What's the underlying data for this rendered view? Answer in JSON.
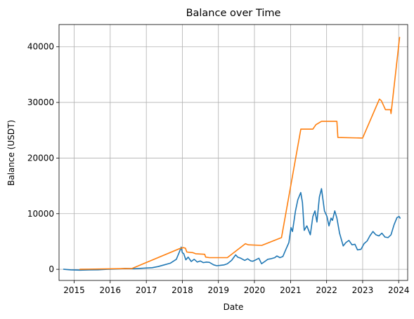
{
  "chart_data": {
    "type": "line",
    "title": "Balance over Time",
    "xlabel": "Date",
    "ylabel": "Balance (USDT)",
    "x_type": "date",
    "xlim": [
      "2014-08-01",
      "2024-04-01"
    ],
    "ylim": [
      -2000,
      44000
    ],
    "x_ticks": [
      {
        "date": "2015-01-01",
        "label": "2015"
      },
      {
        "date": "2016-01-01",
        "label": "2016"
      },
      {
        "date": "2017-01-01",
        "label": "2017"
      },
      {
        "date": "2018-01-01",
        "label": "2018"
      },
      {
        "date": "2019-01-01",
        "label": "2019"
      },
      {
        "date": "2020-01-01",
        "label": "2020"
      },
      {
        "date": "2021-01-01",
        "label": "2021"
      },
      {
        "date": "2022-01-01",
        "label": "2022"
      },
      {
        "date": "2023-01-01",
        "label": "2023"
      },
      {
        "date": "2024-01-01",
        "label": "2024"
      }
    ],
    "y_ticks": [
      {
        "value": 0,
        "label": "0"
      },
      {
        "value": 10000,
        "label": "10000"
      },
      {
        "value": 20000,
        "label": "20000"
      },
      {
        "value": 30000,
        "label": "30000"
      },
      {
        "value": 40000,
        "label": "40000"
      }
    ],
    "grid": true,
    "legend": "none",
    "series": [
      {
        "color": "#1f77b4",
        "points": [
          [
            "2014-09-17",
            0
          ],
          [
            "2014-12-01",
            -100
          ],
          [
            "2015-03-01",
            -150
          ],
          [
            "2015-06-01",
            -100
          ],
          [
            "2015-09-01",
            -80
          ],
          [
            "2015-12-01",
            0
          ],
          [
            "2016-03-01",
            50
          ],
          [
            "2016-06-01",
            150
          ],
          [
            "2016-09-01",
            100
          ],
          [
            "2016-12-01",
            200
          ],
          [
            "2017-03-01",
            300
          ],
          [
            "2017-05-01",
            500
          ],
          [
            "2017-07-01",
            800
          ],
          [
            "2017-09-01",
            1100
          ],
          [
            "2017-11-01",
            1800
          ],
          [
            "2017-12-10",
            3500
          ],
          [
            "2017-12-20",
            4000
          ],
          [
            "2018-01-01",
            3000
          ],
          [
            "2018-01-15",
            2800
          ],
          [
            "2018-02-05",
            1700
          ],
          [
            "2018-03-01",
            2200
          ],
          [
            "2018-04-01",
            1400
          ],
          [
            "2018-05-01",
            1800
          ],
          [
            "2018-06-01",
            1300
          ],
          [
            "2018-07-01",
            1500
          ],
          [
            "2018-08-01",
            1200
          ],
          [
            "2018-09-01",
            1300
          ],
          [
            "2018-10-01",
            1250
          ],
          [
            "2018-11-15",
            800
          ],
          [
            "2018-12-15",
            650
          ],
          [
            "2019-01-15",
            700
          ],
          [
            "2019-03-01",
            800
          ],
          [
            "2019-04-01",
            1000
          ],
          [
            "2019-05-15",
            1600
          ],
          [
            "2019-06-25",
            2600
          ],
          [
            "2019-07-15",
            2200
          ],
          [
            "2019-08-15",
            2000
          ],
          [
            "2019-09-25",
            1600
          ],
          [
            "2019-10-25",
            1900
          ],
          [
            "2019-11-25",
            1500
          ],
          [
            "2019-12-15",
            1450
          ],
          [
            "2020-01-15",
            1700
          ],
          [
            "2020-02-15",
            2000
          ],
          [
            "2020-03-13",
            1000
          ],
          [
            "2020-04-15",
            1400
          ],
          [
            "2020-05-15",
            1800
          ],
          [
            "2020-06-15",
            1900
          ],
          [
            "2020-07-25",
            2100
          ],
          [
            "2020-08-15",
            2400
          ],
          [
            "2020-09-15",
            2100
          ],
          [
            "2020-10-15",
            2300
          ],
          [
            "2020-11-15",
            3600
          ],
          [
            "2020-12-15",
            4800
          ],
          [
            "2021-01-05",
            7500
          ],
          [
            "2021-01-20",
            6800
          ],
          [
            "2021-02-20",
            10500
          ],
          [
            "2021-03-15",
            12500
          ],
          [
            "2021-04-14",
            13800
          ],
          [
            "2021-05-01",
            12000
          ],
          [
            "2021-05-19",
            7000
          ],
          [
            "2021-06-15",
            7800
          ],
          [
            "2021-07-20",
            6200
          ],
          [
            "2021-08-15",
            9500
          ],
          [
            "2021-09-05",
            10500
          ],
          [
            "2021-09-25",
            8500
          ],
          [
            "2021-10-20",
            13000
          ],
          [
            "2021-11-10",
            14500
          ],
          [
            "2021-11-25",
            12500
          ],
          [
            "2021-12-10",
            10500
          ],
          [
            "2022-01-05",
            9500
          ],
          [
            "2022-01-25",
            7800
          ],
          [
            "2022-02-15",
            9200
          ],
          [
            "2022-03-01",
            8800
          ],
          [
            "2022-03-25",
            10500
          ],
          [
            "2022-04-15",
            9200
          ],
          [
            "2022-05-12",
            6500
          ],
          [
            "2022-06-18",
            4200
          ],
          [
            "2022-07-15",
            4800
          ],
          [
            "2022-08-15",
            5200
          ],
          [
            "2022-09-15",
            4400
          ],
          [
            "2022-10-15",
            4500
          ],
          [
            "2022-11-10",
            3500
          ],
          [
            "2022-12-15",
            3600
          ],
          [
            "2023-01-15",
            4600
          ],
          [
            "2023-02-15",
            5100
          ],
          [
            "2023-03-15",
            6000
          ],
          [
            "2023-04-15",
            6800
          ],
          [
            "2023-05-15",
            6200
          ],
          [
            "2023-06-15",
            6000
          ],
          [
            "2023-07-15",
            6500
          ],
          [
            "2023-08-15",
            5800
          ],
          [
            "2023-09-15",
            5700
          ],
          [
            "2023-10-15",
            6200
          ],
          [
            "2023-11-15",
            8000
          ],
          [
            "2023-12-15",
            9300
          ],
          [
            "2024-01-05",
            9500
          ],
          [
            "2024-01-15",
            9200
          ]
        ]
      },
      {
        "color": "#ff7f0e",
        "points": [
          [
            "2015-03-01",
            0
          ],
          [
            "2016-08-10",
            150
          ],
          [
            "2017-12-01",
            3700
          ],
          [
            "2018-01-10",
            3900
          ],
          [
            "2018-02-01",
            3800
          ],
          [
            "2018-02-15",
            3100
          ],
          [
            "2018-04-15",
            3000
          ],
          [
            "2018-05-15",
            2800
          ],
          [
            "2018-08-15",
            2700
          ],
          [
            "2018-08-25",
            2200
          ],
          [
            "2018-10-01",
            2100
          ],
          [
            "2019-04-01",
            2100
          ],
          [
            "2019-10-01",
            4600
          ],
          [
            "2019-10-15",
            4500
          ],
          [
            "2019-11-01",
            4400
          ],
          [
            "2020-03-15",
            4300
          ],
          [
            "2020-10-01",
            5700
          ],
          [
            "2021-04-15",
            25200
          ],
          [
            "2021-08-15",
            25200
          ],
          [
            "2021-09-15",
            26000
          ],
          [
            "2021-11-10",
            26600
          ],
          [
            "2022-04-15",
            26600
          ],
          [
            "2022-04-25",
            23700
          ],
          [
            "2023-01-01",
            23600
          ],
          [
            "2023-06-20",
            30600
          ],
          [
            "2023-07-10",
            30300
          ],
          [
            "2023-08-20",
            28700
          ],
          [
            "2023-10-10",
            28700
          ],
          [
            "2023-10-15",
            28000
          ],
          [
            "2023-10-25",
            29500
          ],
          [
            "2024-01-10",
            41700
          ]
        ]
      }
    ]
  }
}
